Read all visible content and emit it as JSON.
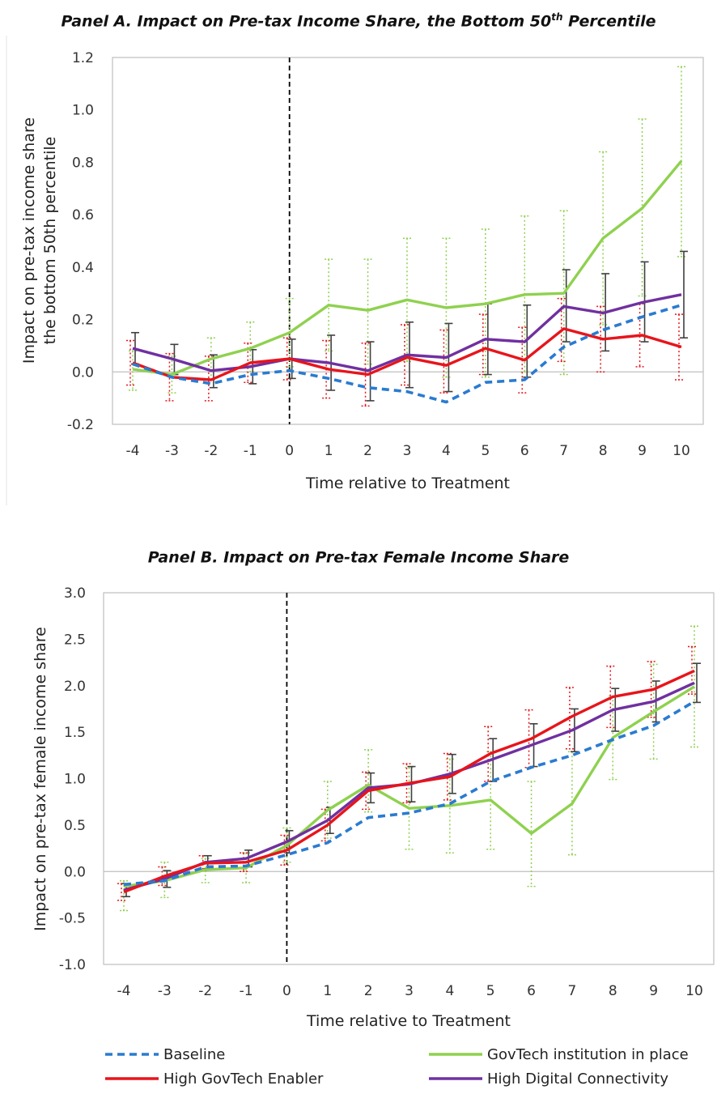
{
  "chart_data": [
    {
      "type": "line",
      "title_prefix": "Panel A. Impact on Pre-tax Income Share, the Bottom 50",
      "title_sup": "th",
      "title_suffix": " Percentile",
      "xlabel": "Time relative to Treatment",
      "ylabel_lines": [
        "Impact on pre-tax income share",
        "the bottom 50th percentile"
      ],
      "x": [
        -4,
        -3,
        -2,
        -1,
        0,
        1,
        2,
        3,
        4,
        5,
        6,
        7,
        8,
        9,
        10
      ],
      "ylim": [
        -0.2,
        1.2
      ],
      "yticks": [
        -0.2,
        0.0,
        0.2,
        0.4,
        0.6,
        0.8,
        1.0,
        1.2
      ],
      "ytick_labels": [
        "-0.2",
        "0.0",
        "0.2",
        "0.4",
        "0.6",
        "0.8",
        "1.0",
        "1.2"
      ],
      "treatment_x": 0,
      "series": [
        {
          "name": "Baseline",
          "color": "#2a7bd0",
          "style": "dashed",
          "values": [
            0.03,
            -0.02,
            -0.045,
            -0.01,
            0.005,
            -0.025,
            -0.06,
            -0.075,
            -0.115,
            -0.04,
            -0.03,
            0.095,
            0.16,
            0.21,
            0.255
          ]
        },
        {
          "name": "GovTech institution in place",
          "color": "#8fd14f",
          "style": "solid",
          "values": [
            0.01,
            -0.01,
            0.05,
            0.09,
            0.15,
            0.255,
            0.235,
            0.275,
            0.245,
            0.26,
            0.295,
            0.3,
            0.51,
            0.625,
            0.805
          ],
          "ci_low": [
            -0.07,
            -0.08,
            -0.03,
            0.0,
            0.02,
            0.08,
            0.03,
            0.04,
            -0.02,
            -0.02,
            0.0,
            -0.01,
            0.18,
            0.29,
            0.44
          ],
          "ci_high": [
            0.08,
            0.06,
            0.13,
            0.19,
            0.28,
            0.43,
            0.43,
            0.51,
            0.51,
            0.545,
            0.595,
            0.615,
            0.84,
            0.965,
            1.165
          ]
        },
        {
          "name": "High GovTech Enabler",
          "color": "#e8141b",
          "style": "solid",
          "values": [
            0.035,
            -0.02,
            -0.03,
            0.035,
            0.05,
            0.01,
            -0.01,
            0.055,
            0.025,
            0.09,
            0.045,
            0.165,
            0.125,
            0.14,
            0.095
          ],
          "ci_low": [
            -0.05,
            -0.11,
            -0.11,
            -0.04,
            -0.03,
            -0.1,
            -0.13,
            -0.05,
            -0.08,
            -0.01,
            -0.08,
            0.04,
            0.0,
            0.02,
            -0.03
          ],
          "ci_high": [
            0.12,
            0.07,
            0.06,
            0.11,
            0.13,
            0.12,
            0.11,
            0.18,
            0.16,
            0.22,
            0.17,
            0.28,
            0.25,
            0.26,
            0.22
          ]
        },
        {
          "name": "High Digital Connectivity",
          "color": "#7030a0",
          "style": "solid",
          "values": [
            0.09,
            0.05,
            0.005,
            0.02,
            0.05,
            0.035,
            0.005,
            0.065,
            0.055,
            0.125,
            0.115,
            0.25,
            0.225,
            0.265,
            0.295
          ],
          "ci_low": [
            0.03,
            -0.01,
            -0.06,
            -0.045,
            -0.025,
            -0.07,
            -0.11,
            -0.06,
            -0.075,
            -0.01,
            -0.02,
            0.115,
            0.08,
            0.115,
            0.13
          ],
          "ci_high": [
            0.15,
            0.105,
            0.065,
            0.085,
            0.125,
            0.14,
            0.115,
            0.19,
            0.185,
            0.26,
            0.255,
            0.39,
            0.375,
            0.42,
            0.46
          ]
        }
      ]
    },
    {
      "type": "line",
      "title_prefix": "Panel B. Impact on Pre-tax Female Income Share",
      "title_sup": "",
      "title_suffix": "",
      "xlabel": "Time relative to Treatment",
      "ylabel_lines": [
        "Impact on pre-tax female income share"
      ],
      "x": [
        -4,
        -3,
        -2,
        -1,
        0,
        1,
        2,
        3,
        4,
        5,
        6,
        7,
        8,
        9,
        10
      ],
      "ylim": [
        -1.0,
        3.0
      ],
      "yticks": [
        -1.0,
        -0.5,
        0.0,
        0.5,
        1.0,
        1.5,
        2.0,
        2.5,
        3.0
      ],
      "ytick_labels": [
        "-1.0",
        "-0.5",
        "0.0",
        "0.5",
        "1.0",
        "1.5",
        "2.0",
        "2.5",
        "3.0"
      ],
      "treatment_x": 0,
      "series": [
        {
          "name": "Baseline",
          "color": "#2a7bd0",
          "style": "dashed",
          "values": [
            -0.14,
            -0.1,
            0.05,
            0.06,
            0.18,
            0.31,
            0.58,
            0.63,
            0.73,
            0.97,
            1.12,
            1.25,
            1.42,
            1.57,
            1.83
          ]
        },
        {
          "name": "GovTech institution in place",
          "color": "#8fd14f",
          "style": "solid",
          "values": [
            -0.16,
            -0.1,
            0.02,
            0.04,
            0.28,
            0.66,
            0.93,
            0.68,
            0.71,
            0.77,
            0.41,
            0.73,
            1.44,
            1.72,
            1.99
          ],
          "ci_low": [
            -0.42,
            -0.28,
            -0.12,
            -0.12,
            0.1,
            0.36,
            0.64,
            0.24,
            0.2,
            0.24,
            -0.16,
            0.18,
            0.99,
            1.21,
            1.34
          ],
          "ci_high": [
            -0.1,
            0.1,
            0.14,
            0.2,
            0.47,
            0.97,
            1.31,
            1.12,
            1.21,
            1.29,
            0.97,
            1.29,
            1.89,
            2.23,
            2.64
          ]
        },
        {
          "name": "High GovTech Enabler",
          "color": "#e8141b",
          "style": "solid",
          "values": [
            -0.22,
            -0.05,
            0.09,
            0.1,
            0.23,
            0.5,
            0.87,
            0.95,
            1.02,
            1.27,
            1.43,
            1.67,
            1.88,
            1.96,
            2.16
          ],
          "ci_low": [
            -0.31,
            -0.15,
            0.01,
            0.0,
            0.07,
            0.33,
            0.67,
            0.74,
            0.77,
            0.97,
            1.12,
            1.32,
            1.55,
            1.66,
            1.91
          ],
          "ci_high": [
            -0.13,
            0.05,
            0.17,
            0.2,
            0.39,
            0.67,
            1.07,
            1.16,
            1.27,
            1.56,
            1.74,
            1.98,
            2.21,
            2.26,
            2.42
          ]
        },
        {
          "name": "High Digital Connectivity",
          "color": "#7030a0",
          "style": "solid",
          "values": [
            -0.2,
            -0.08,
            0.1,
            0.14,
            0.32,
            0.55,
            0.9,
            0.94,
            1.05,
            1.2,
            1.36,
            1.52,
            1.74,
            1.83,
            2.03
          ],
          "ci_low": [
            -0.27,
            -0.17,
            0.03,
            0.05,
            0.2,
            0.41,
            0.74,
            0.75,
            0.84,
            0.97,
            1.13,
            1.29,
            1.51,
            1.61,
            1.82
          ],
          "ci_high": [
            -0.13,
            0.01,
            0.17,
            0.23,
            0.44,
            0.69,
            1.06,
            1.13,
            1.26,
            1.43,
            1.59,
            1.75,
            1.97,
            2.05,
            2.24
          ]
        }
      ]
    }
  ],
  "legend": {
    "items": [
      {
        "name": "Baseline",
        "color": "#2a7bd0",
        "style": "dashed"
      },
      {
        "name": "GovTech institution in place",
        "color": "#8fd14f",
        "style": "solid"
      },
      {
        "name": "High GovTech Enabler",
        "color": "#e8141b",
        "style": "solid"
      },
      {
        "name": "High Digital Connectivity",
        "color": "#7030a0",
        "style": "solid"
      }
    ]
  },
  "colors": {
    "axis": "#bfbfbf",
    "zero_line": "#bfbfbf",
    "treatment_line": "#000000",
    "ci_neutral": "#404040"
  }
}
